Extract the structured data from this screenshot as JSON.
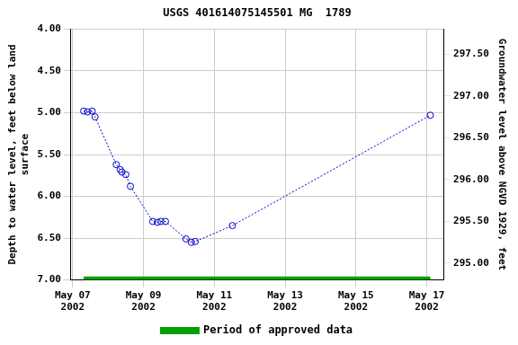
{
  "chart_data": {
    "type": "line",
    "title": "USGS 401614075145501 MG  1789",
    "y_label": "Depth to water level, feet below land\nsurface",
    "y2_label": "Groundwater level above NGVD 1929, feet",
    "xlim": [
      6.95,
      17.47
    ],
    "xticks": [
      {
        "value": 7,
        "label": "May 07\n2002"
      },
      {
        "value": 9,
        "label": "May 09\n2002"
      },
      {
        "value": 11,
        "label": "May 11\n2002"
      },
      {
        "value": 13,
        "label": "May 13\n2002"
      },
      {
        "value": 15,
        "label": "May 15\n2002"
      },
      {
        "value": 17,
        "label": "May 17\n2002"
      }
    ],
    "ylim": [
      7,
      4
    ],
    "yticks": [
      {
        "value": 4,
        "label": "4.00"
      },
      {
        "value": 4.5,
        "label": "4.50"
      },
      {
        "value": 5,
        "label": "5.00"
      },
      {
        "value": 5.5,
        "label": "5.50"
      },
      {
        "value": 6,
        "label": "6.00"
      },
      {
        "value": 6.5,
        "label": "6.50"
      },
      {
        "value": 7,
        "label": "7.00"
      }
    ],
    "y2lim": [
      294.8,
      297.8
    ],
    "y2ticks": [
      {
        "value": 295,
        "label": "295.00"
      },
      {
        "value": 295.5,
        "label": "295.50"
      },
      {
        "value": 296,
        "label": "296.00"
      },
      {
        "value": 296.5,
        "label": "296.50"
      },
      {
        "value": 297,
        "label": "297.00"
      },
      {
        "value": 297.5,
        "label": "297.50"
      }
    ],
    "grid": true,
    "legend": "bottom",
    "series": [
      {
        "color": "#0000cc",
        "marker": "circle",
        "line_style": "dotted",
        "x": [
          7.31,
          7.42,
          7.55,
          7.63,
          8.23,
          8.34,
          8.39,
          8.5,
          8.63,
          9.26,
          9.39,
          9.49,
          9.62,
          10.2,
          10.35,
          10.46,
          11.51,
          17.1
        ],
        "values": [
          4.98,
          4.99,
          4.98,
          5.05,
          5.62,
          5.68,
          5.71,
          5.74,
          5.88,
          6.3,
          6.31,
          6.3,
          6.3,
          6.51,
          6.55,
          6.54,
          6.35,
          5.03
        ]
      },
      {
        "name": "Period of approved data",
        "color": "#00a000",
        "marker": "none",
        "line_style": "solid",
        "x": [
          7.31,
          17.1
        ],
        "values": [
          6.98,
          6.98
        ]
      }
    ]
  }
}
